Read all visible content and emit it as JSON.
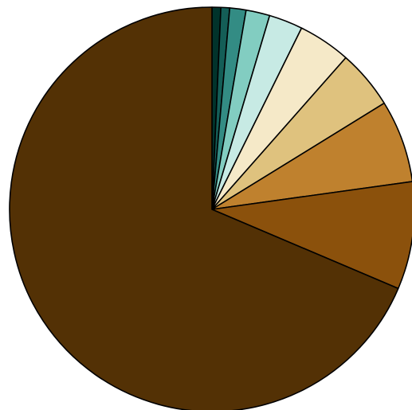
{
  "chart_data": {
    "type": "pie",
    "title": "",
    "start_angle_deg": 90,
    "direction": "clockwise",
    "outline_color": "#000000",
    "slices": [
      {
        "value": 0.7,
        "color": "#01332b"
      },
      {
        "value": 0.7,
        "color": "#145e57"
      },
      {
        "value": 1.3,
        "color": "#338c84"
      },
      {
        "value": 1.9,
        "color": "#82cdc1"
      },
      {
        "value": 2.7,
        "color": "#c7eae4"
      },
      {
        "value": 4.2,
        "color": "#f5e9c8"
      },
      {
        "value": 4.7,
        "color": "#dfc27e"
      },
      {
        "value": 6.6,
        "color": "#bf812e"
      },
      {
        "value": 8.6,
        "color": "#8b510c"
      },
      {
        "value": 68.6,
        "color": "#533105"
      }
    ]
  }
}
